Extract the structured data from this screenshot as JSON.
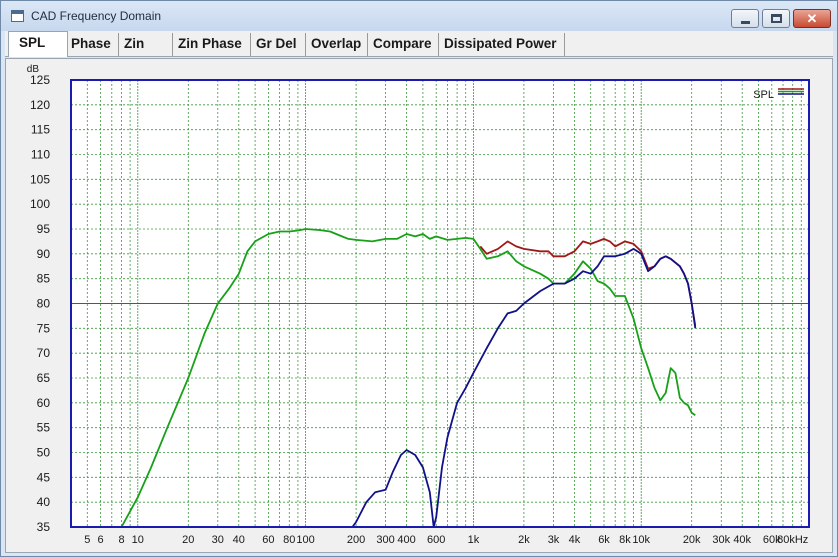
{
  "window": {
    "title": "CAD Frequency Domain",
    "close_glyph": "✕"
  },
  "tabs": [
    {
      "label": "SPL",
      "active": true
    },
    {
      "label": "Phase"
    },
    {
      "label": "Zin"
    },
    {
      "label": "Zin Phase"
    },
    {
      "label": "Gr Del"
    },
    {
      "label": "Overlap"
    },
    {
      "label": "Compare"
    },
    {
      "label": "Dissipated Power"
    }
  ],
  "chart_data": {
    "type": "line",
    "ylabel": "dB",
    "xscale": "log",
    "xlim": [
      4,
      100000
    ],
    "ylim": [
      35,
      125
    ],
    "grid": true,
    "legend": {
      "label": "SPL",
      "placement": "top-right"
    },
    "x_tick_labels": [
      {
        "v": 5,
        "t": "5"
      },
      {
        "v": 6,
        "t": "6"
      },
      {
        "v": 8,
        "t": "8"
      },
      {
        "v": 10,
        "t": "10"
      },
      {
        "v": 20,
        "t": "20"
      },
      {
        "v": 30,
        "t": "30"
      },
      {
        "v": 40,
        "t": "40"
      },
      {
        "v": 60,
        "t": "60"
      },
      {
        "v": 80,
        "t": "80"
      },
      {
        "v": 100,
        "t": "100"
      },
      {
        "v": 200,
        "t": "200"
      },
      {
        "v": 300,
        "t": "300"
      },
      {
        "v": 400,
        "t": "400"
      },
      {
        "v": 600,
        "t": "600"
      },
      {
        "v": 1000,
        "t": "1k"
      },
      {
        "v": 2000,
        "t": "2k"
      },
      {
        "v": 3000,
        "t": "3k"
      },
      {
        "v": 4000,
        "t": "4k"
      },
      {
        "v": 6000,
        "t": "6k"
      },
      {
        "v": 8000,
        "t": "8k"
      },
      {
        "v": 10000,
        "t": "10k"
      },
      {
        "v": 20000,
        "t": "20k"
      },
      {
        "v": 30000,
        "t": "30k"
      },
      {
        "v": 40000,
        "t": "40k"
      },
      {
        "v": 60000,
        "t": "60k"
      },
      {
        "v": 80000,
        "t": "80kHz"
      }
    ],
    "y_ticks": [
      35,
      40,
      45,
      50,
      55,
      60,
      65,
      70,
      75,
      80,
      85,
      90,
      95,
      100,
      105,
      110,
      115,
      120,
      125
    ],
    "reference_line": {
      "y": 80,
      "color": "#b03030"
    },
    "colors": {
      "red": "#a01818",
      "green": "#18a018",
      "blue": "#10108a",
      "grid": "#3a9a3a",
      "border": "#1a1ab0"
    },
    "series": [
      {
        "color": "#a01818",
        "points": [
          [
            1100,
            91.5
          ],
          [
            1200,
            90
          ],
          [
            1400,
            91
          ],
          [
            1600,
            92.5
          ],
          [
            1800,
            91.5
          ],
          [
            2000,
            91
          ],
          [
            2500,
            90.5
          ],
          [
            2800,
            90.5
          ],
          [
            3000,
            89.5
          ],
          [
            3500,
            89.5
          ],
          [
            4000,
            90.5
          ],
          [
            4500,
            92.5
          ],
          [
            5000,
            92
          ],
          [
            5500,
            92.5
          ],
          [
            6000,
            93
          ],
          [
            6500,
            92.5
          ],
          [
            7000,
            91.5
          ],
          [
            8000,
            92.5
          ],
          [
            9000,
            92
          ],
          [
            10000,
            90.5
          ],
          [
            11000,
            87
          ],
          [
            12000,
            87.5
          ],
          [
            13000,
            89
          ],
          [
            14000,
            89.5
          ],
          [
            15000,
            89
          ],
          [
            17000,
            87.5
          ],
          [
            18000,
            86
          ],
          [
            19000,
            84
          ],
          [
            20000,
            80
          ],
          [
            21000,
            75.5
          ]
        ]
      },
      {
        "color": "#18a018",
        "points": [
          [
            8,
            35
          ],
          [
            10,
            41
          ],
          [
            12,
            47
          ],
          [
            15,
            55
          ],
          [
            20,
            65
          ],
          [
            25,
            74
          ],
          [
            30,
            80
          ],
          [
            35,
            83
          ],
          [
            40,
            86
          ],
          [
            45,
            90.5
          ],
          [
            50,
            92.5
          ],
          [
            60,
            94
          ],
          [
            70,
            94.5
          ],
          [
            80,
            94.5
          ],
          [
            90,
            94.7
          ],
          [
            100,
            95
          ],
          [
            120,
            94.8
          ],
          [
            140,
            94.5
          ],
          [
            160,
            93.7
          ],
          [
            180,
            93
          ],
          [
            200,
            92.8
          ],
          [
            250,
            92.5
          ],
          [
            300,
            93
          ],
          [
            350,
            93
          ],
          [
            400,
            94
          ],
          [
            450,
            93.5
          ],
          [
            500,
            94
          ],
          [
            550,
            93
          ],
          [
            600,
            93.5
          ],
          [
            700,
            92.8
          ],
          [
            800,
            93
          ],
          [
            900,
            93.2
          ],
          [
            1000,
            93
          ],
          [
            1100,
            91
          ],
          [
            1200,
            89
          ],
          [
            1400,
            89.5
          ],
          [
            1600,
            90.5
          ],
          [
            1800,
            88.5
          ],
          [
            2000,
            87.5
          ],
          [
            2500,
            86
          ],
          [
            2800,
            85
          ],
          [
            3000,
            84
          ],
          [
            3500,
            84
          ],
          [
            4000,
            86
          ],
          [
            4500,
            88.5
          ],
          [
            5000,
            87
          ],
          [
            5500,
            84.5
          ],
          [
            6000,
            84
          ],
          [
            6500,
            83
          ],
          [
            7000,
            81.5
          ],
          [
            8000,
            81.5
          ],
          [
            9000,
            77
          ],
          [
            10000,
            71
          ],
          [
            11000,
            67
          ],
          [
            12000,
            63
          ],
          [
            13000,
            60.5
          ],
          [
            14000,
            62
          ],
          [
            15000,
            67
          ],
          [
            16000,
            66
          ],
          [
            17000,
            61
          ],
          [
            18000,
            60
          ],
          [
            19000,
            59.5
          ],
          [
            20000,
            58
          ],
          [
            21000,
            57.5
          ]
        ]
      },
      {
        "color": "#10108a",
        "points": [
          [
            190,
            35
          ],
          [
            200,
            36
          ],
          [
            230,
            40
          ],
          [
            260,
            42
          ],
          [
            300,
            42.5
          ],
          [
            330,
            46
          ],
          [
            370,
            49.5
          ],
          [
            400,
            50.5
          ],
          [
            450,
            49.5
          ],
          [
            500,
            47
          ],
          [
            550,
            42
          ],
          [
            580,
            35
          ],
          [
            600,
            37
          ],
          [
            650,
            47
          ],
          [
            700,
            53
          ],
          [
            800,
            60
          ],
          [
            900,
            63
          ],
          [
            1000,
            66
          ],
          [
            1200,
            71
          ],
          [
            1400,
            75
          ],
          [
            1600,
            78
          ],
          [
            1800,
            78.5
          ],
          [
            2000,
            80
          ],
          [
            2500,
            82.5
          ],
          [
            3000,
            84
          ],
          [
            3500,
            84
          ],
          [
            4000,
            85
          ],
          [
            4500,
            86.5
          ],
          [
            5000,
            86
          ],
          [
            5500,
            87.5
          ],
          [
            6000,
            89.5
          ],
          [
            7000,
            89.5
          ],
          [
            8000,
            90
          ],
          [
            9000,
            91
          ],
          [
            10000,
            90
          ],
          [
            11000,
            86.5
          ],
          [
            12000,
            87.5
          ],
          [
            13000,
            89
          ],
          [
            14000,
            89.5
          ],
          [
            15000,
            89
          ],
          [
            17000,
            87.5
          ],
          [
            18000,
            86
          ],
          [
            19000,
            84
          ],
          [
            20000,
            80
          ],
          [
            21000,
            75
          ]
        ]
      }
    ]
  }
}
